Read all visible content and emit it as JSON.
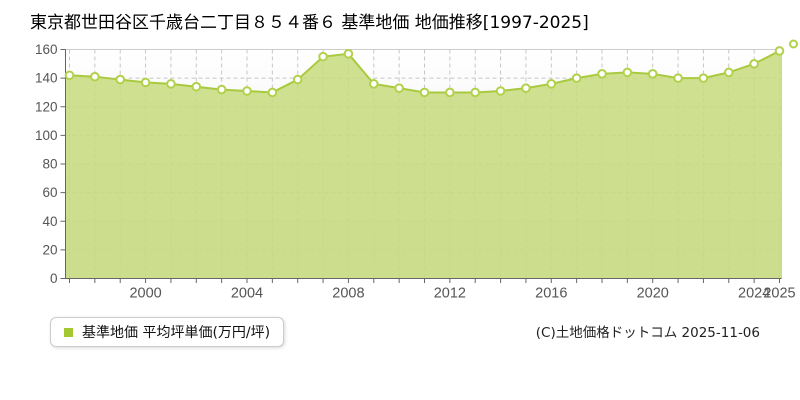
{
  "title": "東京都世田谷区千歳台二丁目８５４番６ 基準地価 地価推移[1997-2025]",
  "legend": {
    "label": "基準地価 平均坪単価(万円/坪)",
    "marker_color": "#a3c832"
  },
  "footer": {
    "copyright": "(C)土地価格ドットコム 2025-11-06"
  },
  "chart_data": {
    "type": "area",
    "title": "東京都世田谷区千歳台二丁目８５４番６ 基準地価 地価推移[1997-2025]",
    "series_name": "基準地価 平均坪単価(万円/坪)",
    "unit": "万円/坪",
    "x": [
      1997,
      1998,
      1999,
      2000,
      2001,
      2002,
      2003,
      2004,
      2005,
      2006,
      2007,
      2008,
      2009,
      2010,
      2011,
      2012,
      2013,
      2014,
      2015,
      2016,
      2017,
      2018,
      2019,
      2020,
      2021,
      2022,
      2023,
      2024,
      2025
    ],
    "values": [
      142,
      141,
      139,
      137,
      136,
      134,
      132,
      131,
      130,
      139,
      155,
      157,
      136,
      133,
      130,
      130,
      130,
      131,
      133,
      136,
      140,
      143,
      144,
      143,
      140,
      140,
      144,
      150,
      159
    ],
    "ylim": [
      0,
      160
    ],
    "ytick_step": 20,
    "xtick_labels": [
      "2000",
      "2004",
      "2008",
      "2012",
      "2016",
      "2020",
      "2024",
      "2025"
    ],
    "grid": true,
    "legend_position": "bottom-left",
    "colors": {
      "fill": "#c8da7e",
      "line": "#a9c93f",
      "marker_fill": "#ffffff",
      "marker_stroke": "#b2d14b",
      "grid": "#c6c6c6",
      "frame": "#cccccc",
      "axis": "#666666",
      "tick_text": "#555555"
    }
  }
}
